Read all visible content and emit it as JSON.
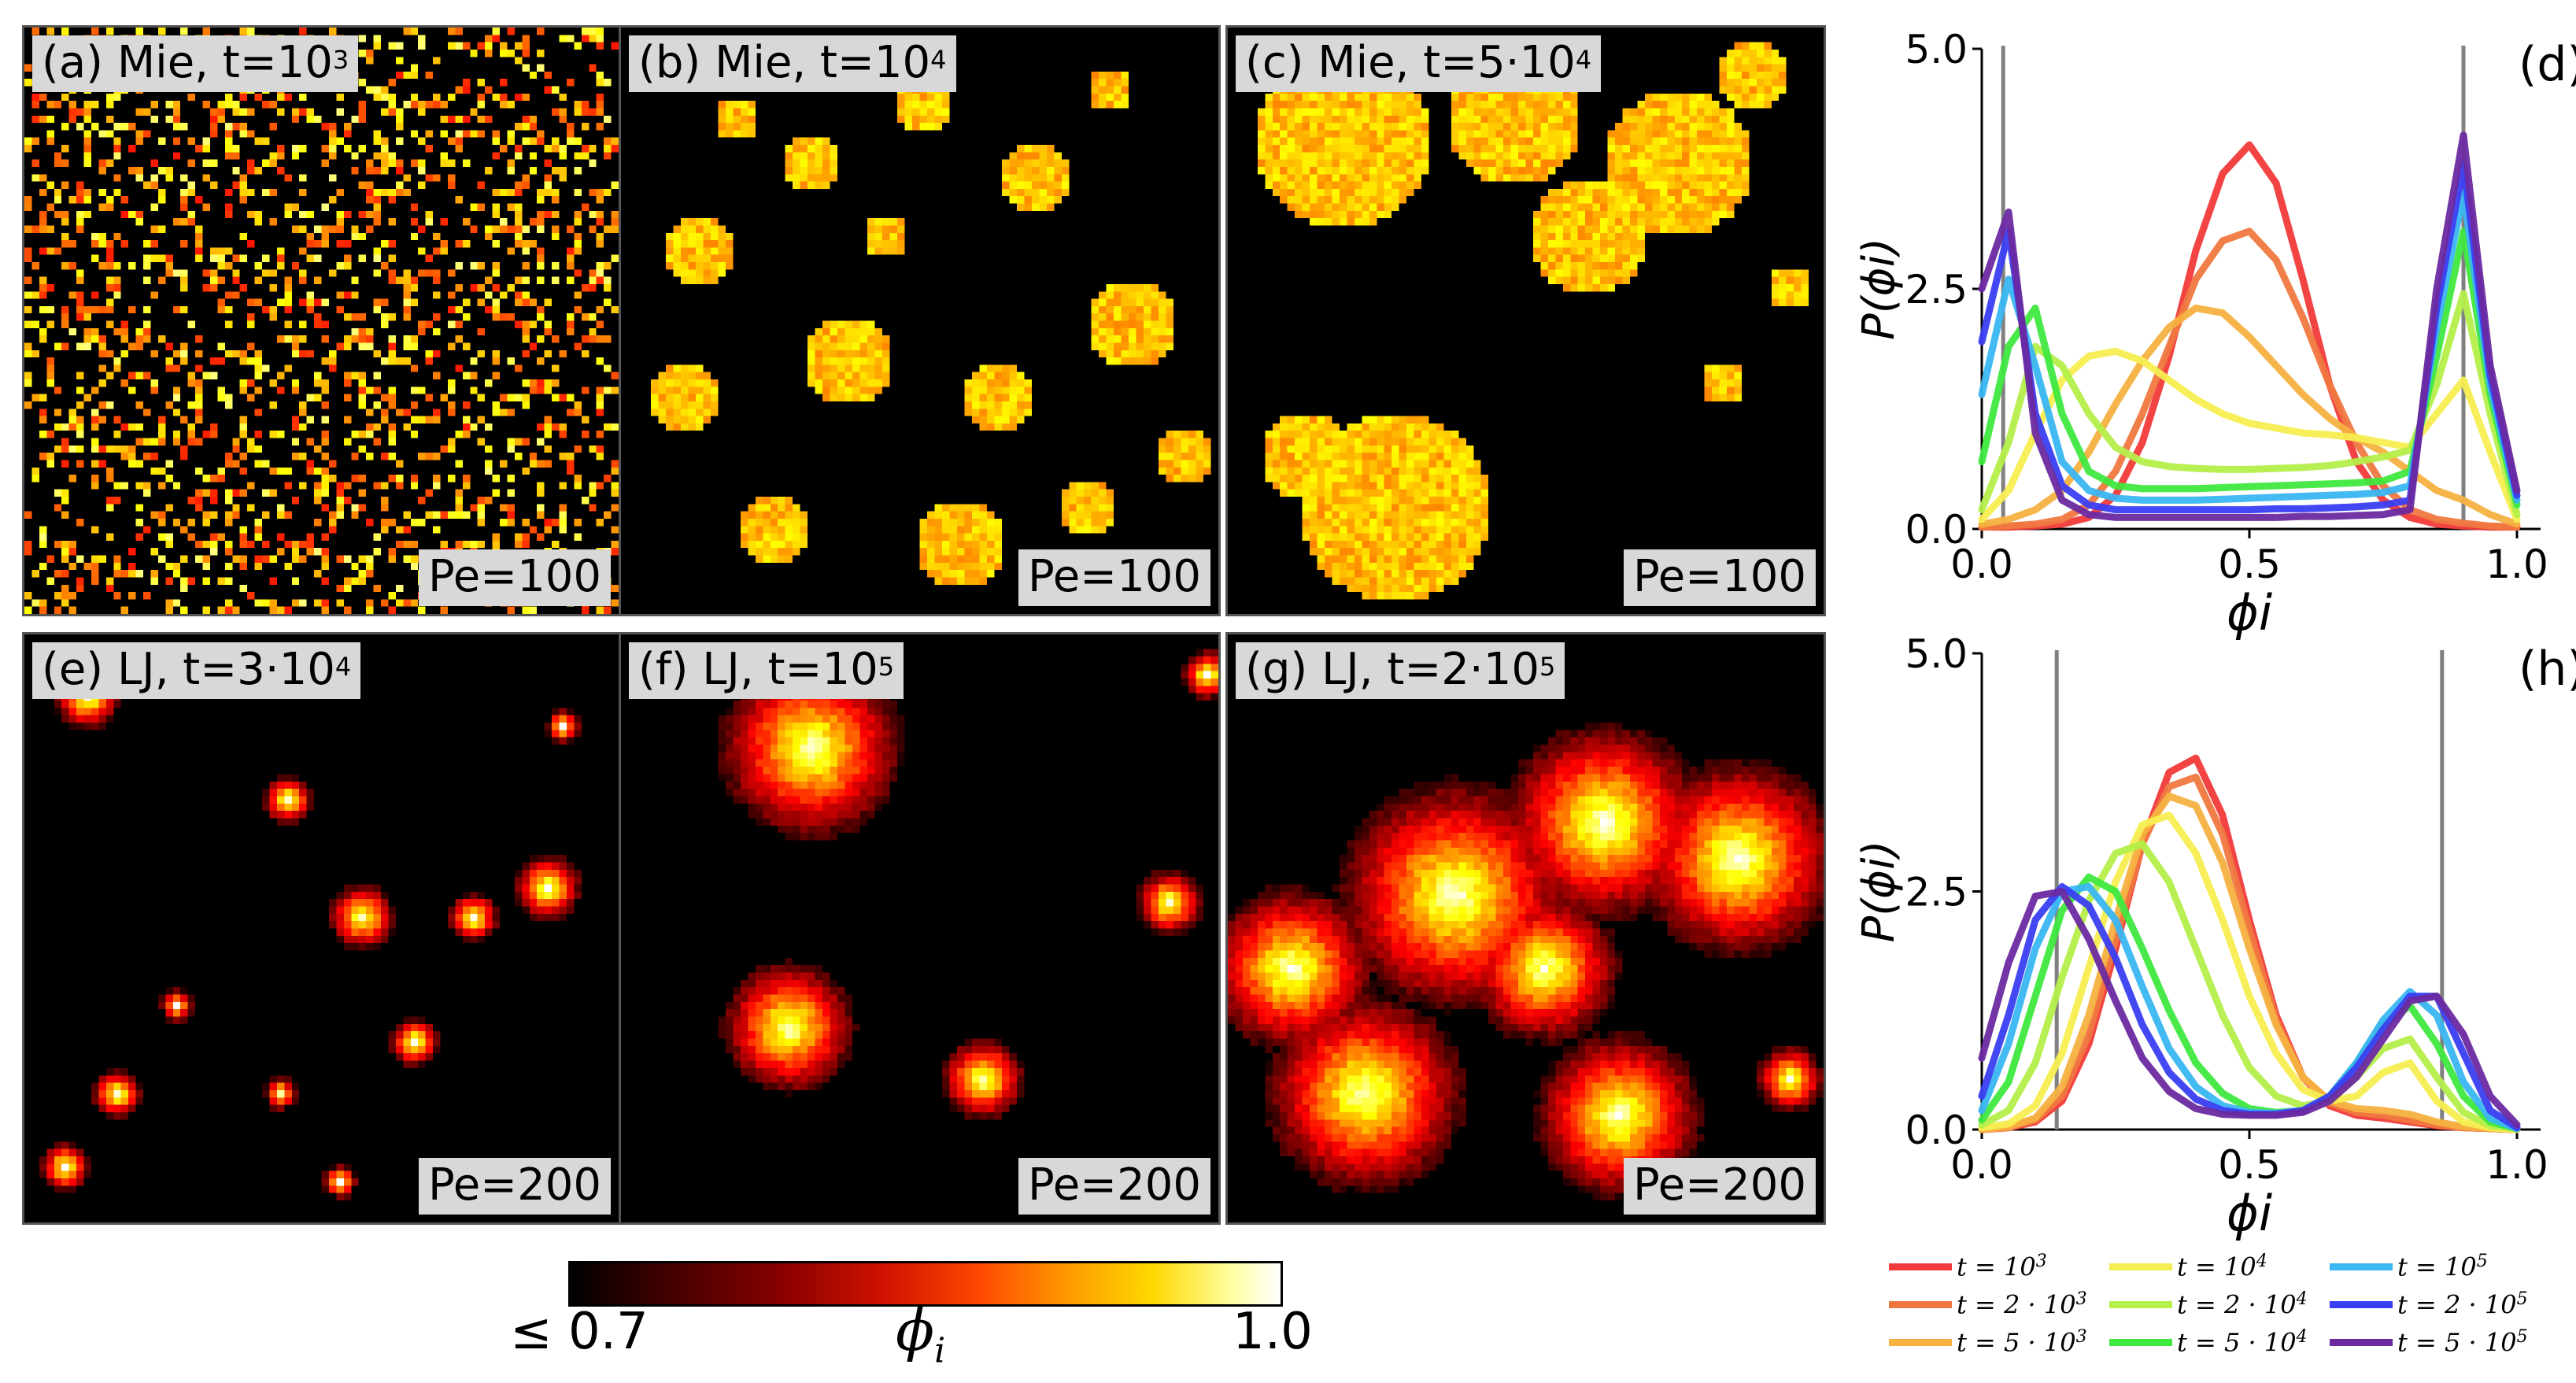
{
  "panels_top": [
    {
      "label": "(a)",
      "model": "Mie",
      "time_base": "t=10",
      "time_exp": "3",
      "pe": "Pe=100"
    },
    {
      "label": "(b)",
      "model": "Mie",
      "time_base": "t=10",
      "time_exp": "4",
      "pe": "Pe=100"
    },
    {
      "label": "(c)",
      "model": "Mie",
      "time_base": "t=5·10",
      "time_exp": "4",
      "pe": "Pe=100"
    }
  ],
  "panels_bottom": [
    {
      "label": "(e)",
      "model": "LJ",
      "time_base": "t=3·10",
      "time_exp": "4",
      "pe": "Pe=200"
    },
    {
      "label": "(f)",
      "model": "LJ",
      "time_base": "t=10",
      "time_exp": "5",
      "pe": "Pe=200"
    },
    {
      "label": "(g)",
      "model": "LJ",
      "time_base": "t=2·10",
      "time_exp": "5",
      "pe": "Pe=200"
    }
  ],
  "colorbar": {
    "min_label": "≤ 0.7",
    "max_label": "1.0",
    "symbol": "ϕ",
    "symbol_sub": "i",
    "colormap": "hot"
  },
  "legend": {
    "entries": [
      {
        "text": "t = 10",
        "exp": "3",
        "color": "#f23a3a"
      },
      {
        "text": "t = 2 · 10",
        "exp": "3",
        "color": "#f07840"
      },
      {
        "text": "t = 5 · 10",
        "exp": "3",
        "color": "#f6b140"
      },
      {
        "text": "t = 10",
        "exp": "4",
        "color": "#f5ee50"
      },
      {
        "text": "t = 2 · 10",
        "exp": "4",
        "color": "#b4ef4a"
      },
      {
        "text": "t = 5 · 10",
        "exp": "4",
        "color": "#3ee83e"
      },
      {
        "text": "t = 10",
        "exp": "5",
        "color": "#3ab6f2"
      },
      {
        "text": "t = 2 · 10",
        "exp": "5",
        "color": "#3a3ef2"
      },
      {
        "text": "t = 5 · 10",
        "exp": "5",
        "color": "#6b2aa0"
      }
    ]
  },
  "chart_data": [
    {
      "type": "line",
      "panel_label": "(d)",
      "xlabel": "ϕi",
      "ylabel": "P(ϕi)",
      "xlim": [
        0.0,
        1.0
      ],
      "ylim": [
        0.0,
        5.0
      ],
      "xticks": [
        "0.0",
        "0.5",
        "1.0"
      ],
      "yticks": [
        "0.0",
        "2.5",
        "5.0"
      ],
      "vlines": [
        0.04,
        0.9
      ],
      "x": [
        0.0,
        0.05,
        0.1,
        0.15,
        0.2,
        0.25,
        0.3,
        0.35,
        0.4,
        0.45,
        0.5,
        0.55,
        0.6,
        0.65,
        0.7,
        0.75,
        0.8,
        0.85,
        0.9,
        0.95,
        1.0
      ],
      "series": [
        {
          "name": "t = 10^3",
          "values": [
            0.02,
            0.02,
            0.03,
            0.05,
            0.12,
            0.35,
            0.9,
            1.8,
            2.9,
            3.7,
            4.0,
            3.6,
            2.6,
            1.5,
            0.7,
            0.3,
            0.12,
            0.05,
            0.03,
            0.02,
            0.02
          ]
        },
        {
          "name": "t = 2·10^3",
          "values": [
            0.02,
            0.03,
            0.05,
            0.1,
            0.25,
            0.6,
            1.2,
            1.9,
            2.6,
            3.0,
            3.1,
            2.8,
            2.2,
            1.5,
            0.9,
            0.45,
            0.2,
            0.1,
            0.06,
            0.03,
            0.02
          ]
        },
        {
          "name": "t = 5·10^3",
          "values": [
            0.05,
            0.1,
            0.2,
            0.4,
            0.8,
            1.3,
            1.75,
            2.1,
            2.3,
            2.25,
            2.0,
            1.7,
            1.4,
            1.15,
            0.95,
            0.8,
            0.6,
            0.4,
            0.3,
            0.15,
            0.05
          ]
        },
        {
          "name": "t = 10^4",
          "values": [
            0.1,
            0.4,
            1.0,
            1.55,
            1.8,
            1.85,
            1.75,
            1.55,
            1.35,
            1.2,
            1.1,
            1.05,
            1.0,
            0.98,
            0.95,
            0.9,
            0.85,
            1.2,
            1.55,
            0.8,
            0.1
          ]
        },
        {
          "name": "t = 2·10^4",
          "values": [
            0.2,
            0.9,
            1.9,
            1.7,
            1.2,
            0.85,
            0.7,
            0.65,
            0.63,
            0.62,
            0.62,
            0.63,
            0.64,
            0.66,
            0.7,
            0.75,
            0.82,
            1.5,
            2.45,
            1.2,
            0.15
          ]
        },
        {
          "name": "t = 5·10^4",
          "values": [
            0.7,
            1.9,
            2.3,
            1.2,
            0.6,
            0.45,
            0.42,
            0.42,
            0.42,
            0.43,
            0.44,
            0.45,
            0.46,
            0.47,
            0.48,
            0.5,
            0.6,
            1.8,
            3.1,
            1.4,
            0.25
          ]
        },
        {
          "name": "t = 10^5",
          "values": [
            1.4,
            2.6,
            1.7,
            0.7,
            0.4,
            0.32,
            0.3,
            0.3,
            0.3,
            0.31,
            0.32,
            0.33,
            0.34,
            0.35,
            0.36,
            0.38,
            0.45,
            2.1,
            3.5,
            1.5,
            0.3
          ]
        },
        {
          "name": "t = 2·10^5",
          "values": [
            1.95,
            3.1,
            1.2,
            0.45,
            0.25,
            0.2,
            0.2,
            0.2,
            0.2,
            0.2,
            0.2,
            0.21,
            0.21,
            0.22,
            0.23,
            0.25,
            0.3,
            2.3,
            3.8,
            1.6,
            0.35
          ]
        },
        {
          "name": "t = 5·10^5",
          "values": [
            2.5,
            3.3,
            1.0,
            0.3,
            0.15,
            0.12,
            0.12,
            0.12,
            0.12,
            0.12,
            0.12,
            0.12,
            0.13,
            0.13,
            0.14,
            0.15,
            0.2,
            2.5,
            4.1,
            1.7,
            0.4
          ]
        }
      ]
    },
    {
      "type": "line",
      "panel_label": "(h)",
      "xlabel": "ϕi",
      "ylabel": "P(ϕi)",
      "xlim": [
        0.0,
        1.0
      ],
      "ylim": [
        0.0,
        5.0
      ],
      "xticks": [
        "0.0",
        "0.5",
        "1.0"
      ],
      "yticks": [
        "0.0",
        "2.5",
        "5.0"
      ],
      "vlines": [
        0.14,
        0.86
      ],
      "x": [
        0.0,
        0.05,
        0.1,
        0.15,
        0.2,
        0.25,
        0.3,
        0.35,
        0.4,
        0.45,
        0.5,
        0.55,
        0.6,
        0.65,
        0.7,
        0.75,
        0.8,
        0.85,
        0.9,
        0.95,
        1.0
      ],
      "series": [
        {
          "name": "t = 10^3",
          "values": [
            0.0,
            0.02,
            0.08,
            0.3,
            0.9,
            1.9,
            3.0,
            3.75,
            3.9,
            3.3,
            2.2,
            1.2,
            0.55,
            0.25,
            0.15,
            0.12,
            0.08,
            0.04,
            0.02,
            0.01,
            0.0
          ]
        },
        {
          "name": "t = 2·10^3",
          "values": [
            0.0,
            0.02,
            0.1,
            0.35,
            1.0,
            2.0,
            3.0,
            3.6,
            3.7,
            3.1,
            2.1,
            1.15,
            0.55,
            0.28,
            0.18,
            0.15,
            0.1,
            0.05,
            0.02,
            0.01,
            0.0
          ]
        },
        {
          "name": "t = 5·10^3",
          "values": [
            0.0,
            0.03,
            0.12,
            0.45,
            1.2,
            2.2,
            3.1,
            3.5,
            3.4,
            2.8,
            1.9,
            1.1,
            0.55,
            0.3,
            0.22,
            0.2,
            0.16,
            0.08,
            0.03,
            0.01,
            0.0
          ]
        },
        {
          "name": "t = 10^4",
          "values": [
            0.02,
            0.06,
            0.25,
            0.8,
            1.7,
            2.6,
            3.2,
            3.3,
            2.9,
            2.2,
            1.4,
            0.8,
            0.42,
            0.3,
            0.35,
            0.6,
            0.7,
            0.3,
            0.08,
            0.02,
            0.0
          ]
        },
        {
          "name": "t = 2·10^4",
          "values": [
            0.05,
            0.2,
            0.7,
            1.6,
            2.4,
            2.9,
            3.0,
            2.6,
            1.9,
            1.2,
            0.65,
            0.35,
            0.25,
            0.3,
            0.55,
            0.85,
            0.95,
            0.55,
            0.18,
            0.04,
            0.01
          ]
        },
        {
          "name": "t = 5·10^4",
          "values": [
            0.1,
            0.5,
            1.4,
            2.3,
            2.65,
            2.5,
            1.9,
            1.25,
            0.7,
            0.38,
            0.22,
            0.18,
            0.2,
            0.35,
            0.7,
            1.1,
            1.3,
            0.9,
            0.35,
            0.08,
            0.01
          ]
        },
        {
          "name": "t = 10^5",
          "values": [
            0.2,
            0.9,
            1.9,
            2.5,
            2.55,
            2.2,
            1.5,
            0.85,
            0.45,
            0.25,
            0.18,
            0.17,
            0.2,
            0.35,
            0.7,
            1.15,
            1.45,
            1.2,
            0.5,
            0.12,
            0.01
          ]
        },
        {
          "name": "t = 2·10^5",
          "values": [
            0.35,
            1.2,
            2.2,
            2.55,
            2.35,
            1.8,
            1.1,
            0.6,
            0.32,
            0.2,
            0.16,
            0.16,
            0.2,
            0.35,
            0.65,
            1.05,
            1.4,
            1.4,
            0.8,
            0.2,
            0.02
          ]
        },
        {
          "name": "t = 5·10^5",
          "values": [
            0.75,
            1.75,
            2.45,
            2.5,
            2.0,
            1.35,
            0.75,
            0.4,
            0.22,
            0.16,
            0.15,
            0.15,
            0.18,
            0.3,
            0.55,
            0.95,
            1.35,
            1.4,
            1.0,
            0.35,
            0.05
          ]
        }
      ]
    }
  ]
}
